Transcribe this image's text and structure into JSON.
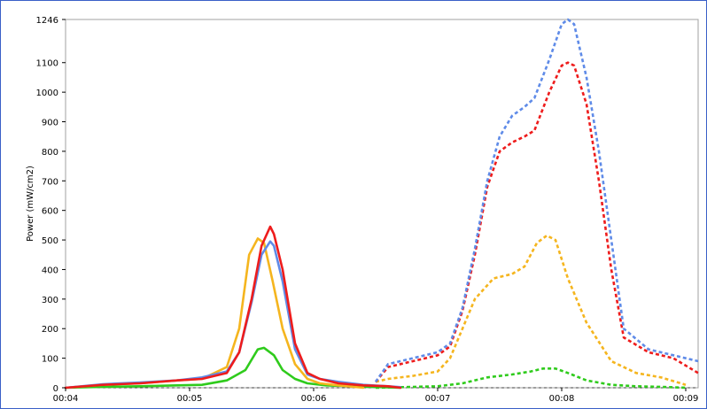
{
  "chart_data": {
    "type": "line",
    "title": "",
    "xlabel": "",
    "ylabel": "Power (mW/cm2)",
    "x_ticks": [
      "00:04",
      "00:05",
      "00:06",
      "00:07",
      "00:08",
      "00:09"
    ],
    "y_ticks": [
      0,
      100,
      200,
      300,
      400,
      500,
      600,
      700,
      800,
      900,
      1000,
      1100,
      1246
    ],
    "xlim": [
      4.0,
      9.1
    ],
    "ylim": [
      0,
      1246
    ],
    "grid": false,
    "legend": "none",
    "series": [
      {
        "color": "#ee1c1c",
        "style": "solid",
        "x": [
          4.0,
          4.3,
          4.6,
          4.9,
          5.1,
          5.3,
          5.4,
          5.5,
          5.58,
          5.65,
          5.68,
          5.75,
          5.85,
          5.95,
          6.05,
          6.2,
          6.4,
          6.6,
          6.7
        ],
        "y": [
          0,
          10,
          15,
          25,
          30,
          50,
          120,
          300,
          480,
          545,
          520,
          400,
          150,
          50,
          30,
          15,
          8,
          5,
          0
        ]
      },
      {
        "color": "#5f8be8",
        "style": "solid",
        "x": [
          4.0,
          4.3,
          4.6,
          4.9,
          5.1,
          5.3,
          5.4,
          5.5,
          5.58,
          5.65,
          5.68,
          5.75,
          5.85,
          5.95,
          6.05,
          6.2,
          6.4,
          6.6,
          6.7
        ],
        "y": [
          0,
          12,
          18,
          25,
          35,
          55,
          120,
          290,
          450,
          495,
          480,
          360,
          130,
          45,
          30,
          20,
          10,
          5,
          2
        ]
      },
      {
        "color": "#f5b51e",
        "style": "solid",
        "x": [
          4.0,
          4.3,
          4.6,
          4.9,
          5.1,
          5.3,
          5.4,
          5.48,
          5.55,
          5.6,
          5.67,
          5.75,
          5.85,
          5.95,
          6.05,
          6.2,
          6.4
        ],
        "y": [
          0,
          10,
          15,
          25,
          30,
          70,
          200,
          450,
          505,
          490,
          360,
          200,
          80,
          30,
          15,
          8,
          0
        ]
      },
      {
        "color": "#2fcb1c",
        "style": "solid",
        "x": [
          4.0,
          4.3,
          4.6,
          4.9,
          5.1,
          5.3,
          5.45,
          5.55,
          5.6,
          5.68,
          5.75,
          5.85,
          5.95,
          6.1,
          6.4,
          6.7
        ],
        "y": [
          0,
          3,
          5,
          8,
          10,
          25,
          60,
          130,
          135,
          110,
          60,
          30,
          15,
          8,
          4,
          0
        ]
      },
      {
        "color": "#5f8be8",
        "style": "dashed",
        "x": [
          6.5,
          6.6,
          6.8,
          7.0,
          7.1,
          7.2,
          7.3,
          7.4,
          7.5,
          7.6,
          7.7,
          7.78,
          7.9,
          8.0,
          8.05,
          8.1,
          8.2,
          8.3,
          8.4,
          8.5,
          8.7,
          8.9,
          9.1
        ],
        "y": [
          20,
          80,
          100,
          120,
          150,
          270,
          470,
          700,
          850,
          920,
          950,
          980,
          1110,
          1230,
          1246,
          1230,
          1050,
          800,
          500,
          200,
          130,
          110,
          90
        ]
      },
      {
        "color": "#ee1c1c",
        "style": "dashed",
        "x": [
          6.5,
          6.6,
          6.8,
          7.0,
          7.1,
          7.2,
          7.3,
          7.4,
          7.5,
          7.6,
          7.7,
          7.78,
          7.9,
          8.0,
          8.05,
          8.1,
          8.2,
          8.3,
          8.4,
          8.5,
          8.7,
          8.9,
          9.1
        ],
        "y": [
          20,
          70,
          90,
          110,
          140,
          260,
          450,
          680,
          800,
          830,
          850,
          870,
          1000,
          1090,
          1100,
          1090,
          960,
          700,
          400,
          170,
          120,
          100,
          50
        ]
      },
      {
        "color": "#f5b51e",
        "style": "dashed",
        "x": [
          6.5,
          6.6,
          6.8,
          7.0,
          7.1,
          7.2,
          7.3,
          7.45,
          7.6,
          7.7,
          7.8,
          7.88,
          7.95,
          8.05,
          8.2,
          8.4,
          8.6,
          8.8,
          9.0
        ],
        "y": [
          20,
          30,
          40,
          55,
          100,
          200,
          300,
          370,
          385,
          410,
          490,
          515,
          500,
          370,
          220,
          90,
          50,
          35,
          10
        ]
      },
      {
        "color": "#2fcb1c",
        "style": "dashed",
        "x": [
          6.5,
          6.8,
          7.0,
          7.2,
          7.4,
          7.6,
          7.75,
          7.85,
          7.95,
          8.05,
          8.2,
          8.4,
          8.6,
          8.8,
          9.0
        ],
        "y": [
          0,
          3,
          5,
          15,
          35,
          45,
          55,
          65,
          65,
          50,
          25,
          10,
          5,
          3,
          0
        ]
      },
      {
        "color": "#3c3c3c",
        "style": "dashed",
        "x": [
          4.0,
          9.1
        ],
        "y": [
          0,
          0
        ]
      }
    ]
  }
}
